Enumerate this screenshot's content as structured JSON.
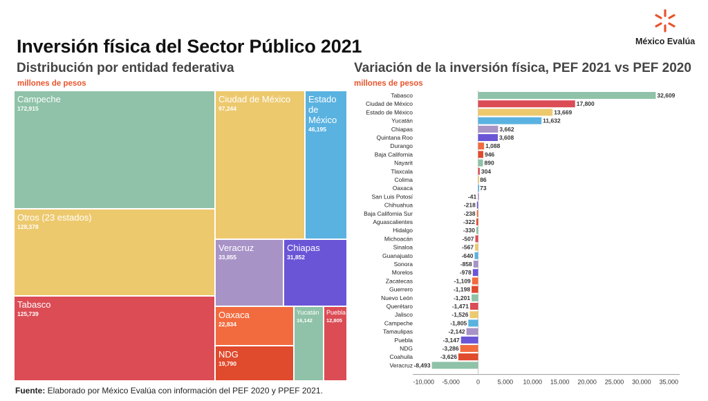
{
  "header": {
    "title": "Inversión física del Sector Público 2021",
    "logo_text": "México Evalúa",
    "left_subtitle": "Distribución por entidad federativa",
    "left_units": "millones de pesos",
    "right_subtitle": "Variación de la inversión física, PEF 2021 vs PEF 2020",
    "right_units": "millones de pesos"
  },
  "footer": {
    "source_label": "Fuente:",
    "source_text": " Elaborado por México Evalúa con información del PEF 2020 y PPEF 2021."
  },
  "chart_data": [
    {
      "type": "treemap",
      "title": "Distribución por entidad federativa",
      "units": "millones de pesos",
      "items": [
        {
          "name": "Campeche",
          "label": "172,915",
          "value": 172915,
          "color": "#8fc2a8"
        },
        {
          "name": "Otros (23 estados)",
          "label": "128,378",
          "value": 128378,
          "color": "#edc96e"
        },
        {
          "name": "Tabasco",
          "label": "125,739",
          "value": 125739,
          "color": "#db4c55"
        },
        {
          "name": "Ciudad de México",
          "label": "97,244",
          "value": 97244,
          "color": "#edc96e"
        },
        {
          "name": "Estado de México",
          "label": "46,195",
          "value": 46195,
          "color": "#5ab2e0"
        },
        {
          "name": "Veracruz",
          "label": "33,855",
          "value": 33855,
          "color": "#a893c7"
        },
        {
          "name": "Chiapas",
          "label": "31,852",
          "value": 31852,
          "color": "#6a55d6"
        },
        {
          "name": "Oaxaca",
          "label": "22,834",
          "value": 22834,
          "color": "#f26b3f"
        },
        {
          "name": "NDG",
          "label": "19,790",
          "value": 19790,
          "color": "#e04a2d"
        },
        {
          "name": "Yucatán",
          "label": "16,142",
          "value": 16142,
          "color": "#8fc2a8"
        },
        {
          "name": "Puebla",
          "label": "12,805",
          "value": 12805,
          "color": "#db4c55"
        }
      ]
    },
    {
      "type": "bar",
      "orientation": "horizontal",
      "title": "Variación de la inversión física, PEF 2021 vs PEF 2020",
      "units": "millones de pesos",
      "xlim": [
        -12000,
        37000
      ],
      "xticks": [
        -10000,
        -5000,
        0,
        5000,
        10000,
        15000,
        20000,
        25000,
        30000,
        35000
      ],
      "xtick_labels": [
        "-10,000",
        "-5,000",
        "0",
        "5,000",
        "10,000",
        "15,000",
        "20,000",
        "25,000",
        "30,000",
        "35,000"
      ],
      "categories": [
        "Tabasco",
        "Ciudad de México",
        "Estado de México",
        "Yucatán",
        "Chiapas",
        "Quintana Roo",
        "Durango",
        "Baja California",
        "Nayarit",
        "Tlaxcala",
        "Colima",
        "Oaxaca",
        "San Luis Potosí",
        "Chihuahua",
        "Baja California Sur",
        "Aguascalientes",
        "Hidalgo",
        "Michoacán",
        "Sinaloa",
        "Guanajuato",
        "Sonora",
        "Morelos",
        "Zacatecas",
        "Guerrero",
        "Nuevo León",
        "Querétaro",
        "Jalisco",
        "Campeche",
        "Tamaulipas",
        "Puebla",
        "NDG",
        "Coahuila",
        "Veracruz"
      ],
      "values": [
        32609,
        17800,
        13669,
        11632,
        3662,
        3608,
        1088,
        946,
        890,
        304,
        86,
        73,
        -41,
        -218,
        -238,
        -322,
        -330,
        -507,
        -567,
        -640,
        -858,
        -978,
        -1109,
        -1198,
        -1201,
        -1471,
        -1526,
        -1805,
        -2142,
        -3147,
        -3286,
        -3626,
        -8493
      ],
      "labels": [
        "32,609",
        "17,800",
        "13,669",
        "11,632",
        "3,662",
        "3,608",
        "1,088",
        "946",
        "890",
        "304",
        "86",
        "73",
        "-41",
        "-218",
        "-238",
        "-322",
        "-330",
        "-507",
        "-567",
        "-640",
        "-858",
        "-978",
        "-1,109",
        "-1,198",
        "-1,201",
        "-1,471",
        "-1,526",
        "-1,805",
        "-2,142",
        "-3,147",
        "-3,286",
        "-3,626",
        "-8,493"
      ],
      "colors": [
        "#8fc2a8",
        "#db4c55",
        "#edc96e",
        "#5ab2e0",
        "#a893c7",
        "#6a55d6",
        "#f26b3f",
        "#e04a2d",
        "#8fc2a8",
        "#db4c55",
        "#edc96e",
        "#5ab2e0",
        "#a893c7",
        "#6a55d6",
        "#f26b3f",
        "#e04a2d",
        "#8fc2a8",
        "#db4c55",
        "#edc96e",
        "#5ab2e0",
        "#a893c7",
        "#6a55d6",
        "#f26b3f",
        "#e04a2d",
        "#8fc2a8",
        "#db4c55",
        "#edc96e",
        "#5ab2e0",
        "#a893c7",
        "#6a55d6",
        "#f26b3f",
        "#e04a2d",
        "#8fc2a8"
      ]
    }
  ]
}
